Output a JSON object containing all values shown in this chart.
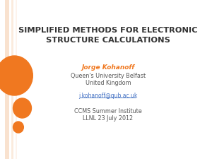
{
  "title_line1": "SIMPLIFIED METHODS FOR ELECTRONIC",
  "title_line2": "STRUCTURE CALCULATIONS",
  "author": "Jorge Kohanoff",
  "affiliation1": "Queen's University Belfast",
  "affiliation2": "United Kingdom",
  "email": "j.kohanoff@qub.ac.uk",
  "event_line1": "CCMS Summer Institute",
  "event_line2": "LLNL 23 July 2012",
  "bg_color": "#ffffff",
  "left_stripe_color": "#f5c6a0",
  "circle_large_color": "#f07820",
  "circle_medium_color": "#f07820",
  "circle_small_color": "#f07820",
  "title_color": "#333333",
  "author_color": "#f07820",
  "text_color": "#555555",
  "email_color": "#4472c4"
}
